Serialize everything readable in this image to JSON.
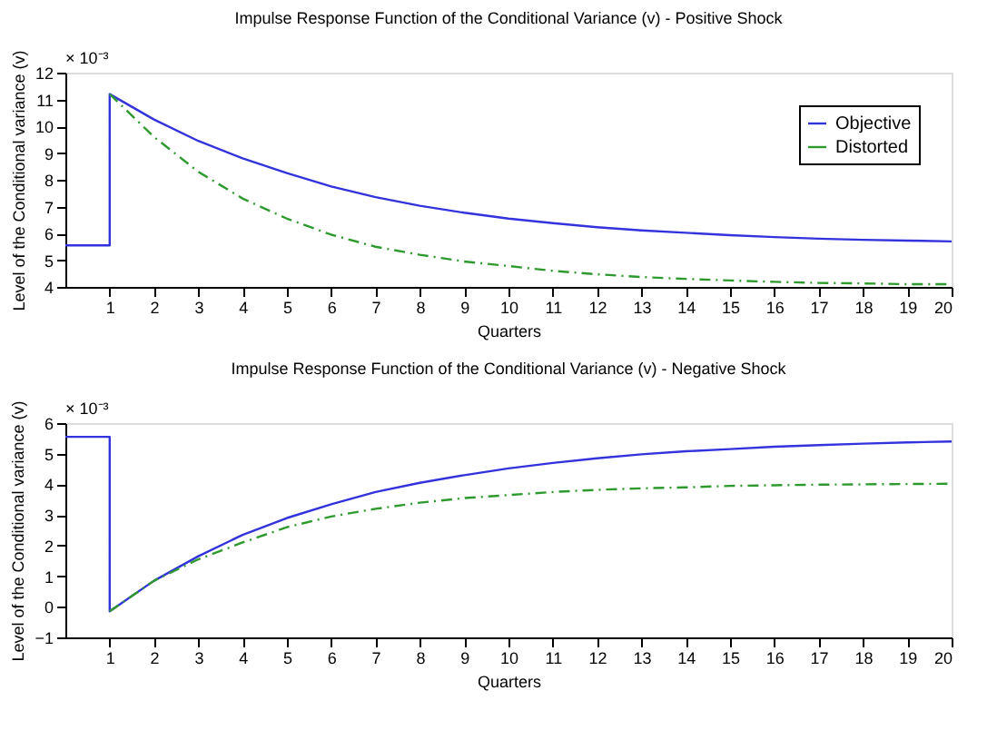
{
  "chart_data": [
    {
      "type": "line",
      "title": "Impulse Response Function of the Conditional Variance (v) - Positive Shock",
      "xlabel": "Quarters",
      "ylabel": "Level of the Conditional variance (v)",
      "annotations": [
        "× 10⁻³"
      ],
      "xlim": [
        0,
        20
      ],
      "xticks": [
        1,
        2,
        3,
        4,
        5,
        6,
        7,
        8,
        9,
        10,
        11,
        12,
        13,
        14,
        15,
        16,
        17,
        18,
        19,
        20
      ],
      "ylim": [
        4,
        12
      ],
      "yticks": [
        4,
        5,
        6,
        7,
        8,
        9,
        10,
        11,
        12
      ],
      "grid": false,
      "legend": "top right",
      "marker": "none",
      "series": [
        {
          "name": "Objective",
          "color": "#3333dd",
          "line_style": "solid",
          "x": [
            0,
            1,
            1,
            2,
            3,
            4,
            5,
            6,
            7,
            8,
            9,
            10,
            11,
            12,
            13,
            14,
            15,
            16,
            17,
            18,
            19,
            20
          ],
          "values": [
            5.55,
            5.55,
            11.2,
            10.25,
            9.45,
            8.8,
            8.25,
            7.75,
            7.35,
            7.03,
            6.77,
            6.55,
            6.38,
            6.23,
            6.11,
            6.02,
            5.93,
            5.86,
            5.8,
            5.76,
            5.73,
            5.7
          ]
        },
        {
          "name": "Distorted",
          "color": "#2e9a2e",
          "line_style": "dashdot",
          "x": [
            1,
            2,
            3,
            4,
            5,
            6,
            7,
            8,
            9,
            10,
            11,
            12,
            13,
            14,
            15,
            16,
            17,
            18,
            19,
            20
          ],
          "values": [
            11.2,
            9.6,
            8.3,
            7.3,
            6.55,
            5.95,
            5.5,
            5.2,
            4.95,
            4.78,
            4.6,
            4.47,
            4.37,
            4.3,
            4.24,
            4.19,
            4.15,
            4.13,
            4.1,
            4.1
          ]
        }
      ]
    },
    {
      "type": "line",
      "title": "Impulse Response Function of the Conditional Variance (v) - Negative Shock",
      "xlabel": "Quarters",
      "ylabel": "Level of the Conditional variance (v)",
      "annotations": [
        "× 10⁻³"
      ],
      "xlim": [
        0,
        20
      ],
      "xticks": [
        1,
        2,
        3,
        4,
        5,
        6,
        7,
        8,
        9,
        10,
        11,
        12,
        13,
        14,
        15,
        16,
        17,
        18,
        19,
        20
      ],
      "ylim": [
        -1,
        6
      ],
      "yticks": [
        -1,
        0,
        1,
        2,
        3,
        4,
        5,
        6
      ],
      "grid": false,
      "legend": false,
      "marker": "none",
      "series": [
        {
          "name": "Objective",
          "color": "#3333dd",
          "line_style": "solid",
          "x": [
            0,
            1,
            1,
            2,
            3,
            4,
            5,
            6,
            7,
            8,
            9,
            10,
            11,
            12,
            13,
            14,
            15,
            16,
            17,
            18,
            19,
            20
          ],
          "values": [
            5.55,
            5.55,
            -0.15,
            0.85,
            1.65,
            2.35,
            2.9,
            3.35,
            3.75,
            4.05,
            4.3,
            4.52,
            4.7,
            4.85,
            4.98,
            5.08,
            5.15,
            5.23,
            5.28,
            5.33,
            5.37,
            5.4
          ]
        },
        {
          "name": "Distorted",
          "color": "#2e9a2e",
          "line_style": "dashdot",
          "x": [
            1,
            2,
            3,
            4,
            5,
            6,
            7,
            8,
            9,
            10,
            11,
            12,
            13,
            14,
            15,
            16,
            17,
            18,
            19,
            20
          ],
          "values": [
            -0.15,
            0.85,
            1.55,
            2.1,
            2.6,
            2.95,
            3.2,
            3.4,
            3.55,
            3.65,
            3.75,
            3.82,
            3.87,
            3.9,
            3.95,
            3.97,
            3.99,
            4.0,
            4.01,
            4.02
          ]
        }
      ]
    }
  ]
}
